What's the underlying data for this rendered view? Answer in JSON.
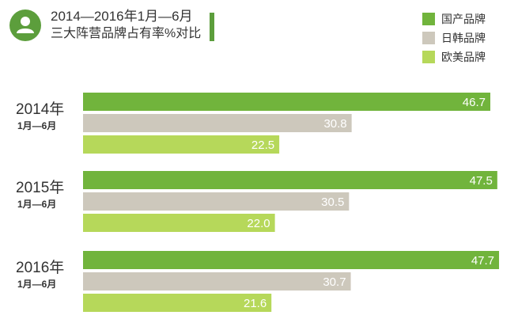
{
  "title": {
    "line1": "2014—2016年1月—6月",
    "line2": "三大阵营品牌占有率%对比"
  },
  "colors": {
    "accent": "#5c9e3c"
  },
  "chart_data": {
    "type": "bar",
    "orientation": "horizontal",
    "categories": [
      "2014年",
      "2015年",
      "2016年"
    ],
    "category_sublabels": [
      "1月—6月",
      "1月—6月",
      "1月—6月"
    ],
    "series": [
      {
        "name": "国产品牌",
        "color": "#71b43c",
        "values": [
          46.7,
          47.5,
          47.7
        ]
      },
      {
        "name": "日韩品牌",
        "color": "#cdc8bc",
        "values": [
          30.8,
          30.5,
          30.7
        ]
      },
      {
        "name": "欧美品牌",
        "color": "#b6d85a",
        "values": [
          22.5,
          22.0,
          21.6
        ]
      }
    ],
    "value_labels": [
      [
        "46.7",
        "47.5",
        "47.7"
      ],
      [
        "30.8",
        "30.5",
        "30.7"
      ],
      [
        "22.5",
        "22.0",
        "21.6"
      ]
    ],
    "xlim": [
      0,
      50
    ],
    "grid": false,
    "legend_position": "top-right"
  }
}
